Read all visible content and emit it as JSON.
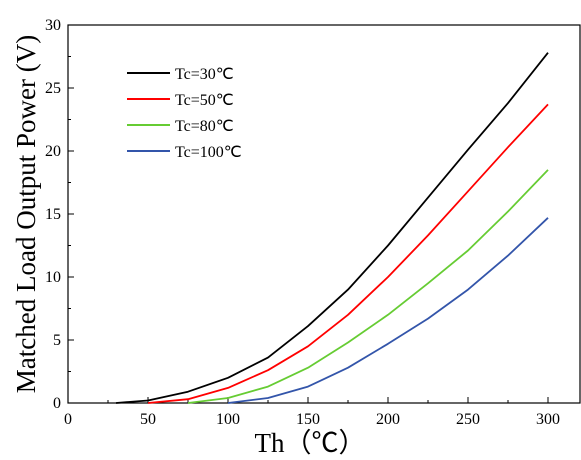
{
  "chart_data": {
    "type": "line",
    "xlabel": "Th（℃）",
    "ylabel": "Matched Load Output Power (V)",
    "xlim": [
      0,
      320
    ],
    "ylim": [
      0,
      30
    ],
    "x_ticks": [
      0,
      50,
      100,
      150,
      200,
      250,
      300
    ],
    "y_ticks": [
      0,
      5,
      10,
      15,
      20,
      25,
      30
    ],
    "legend_position": "top-left",
    "series": [
      {
        "name": "Tc=30℃",
        "color": "#000000",
        "x": [
          30,
          50,
          75,
          100,
          125,
          150,
          175,
          200,
          225,
          250,
          275,
          300
        ],
        "y": [
          0.0,
          0.2,
          0.9,
          2.0,
          3.6,
          6.1,
          9.0,
          12.5,
          16.3,
          20.1,
          23.8,
          27.8
        ]
      },
      {
        "name": "Tc=50℃",
        "color": "#ff0000",
        "x": [
          50,
          75,
          100,
          125,
          150,
          175,
          200,
          225,
          250,
          275,
          300
        ],
        "y": [
          0.0,
          0.3,
          1.2,
          2.6,
          4.5,
          7.0,
          10.0,
          13.3,
          16.8,
          20.3,
          23.7
        ]
      },
      {
        "name": "Tc=80℃",
        "color": "#66cc33",
        "x": [
          75,
          100,
          125,
          150,
          175,
          200,
          225,
          250,
          275,
          300
        ],
        "y": [
          0.0,
          0.4,
          1.3,
          2.8,
          4.8,
          7.0,
          9.5,
          12.1,
          15.2,
          18.5
        ]
      },
      {
        "name": "Tc=100℃",
        "color": "#3355aa",
        "x": [
          100,
          125,
          150,
          175,
          200,
          225,
          250,
          275,
          300
        ],
        "y": [
          0.0,
          0.4,
          1.3,
          2.8,
          4.7,
          6.7,
          9.0,
          11.7,
          14.7
        ]
      }
    ]
  }
}
